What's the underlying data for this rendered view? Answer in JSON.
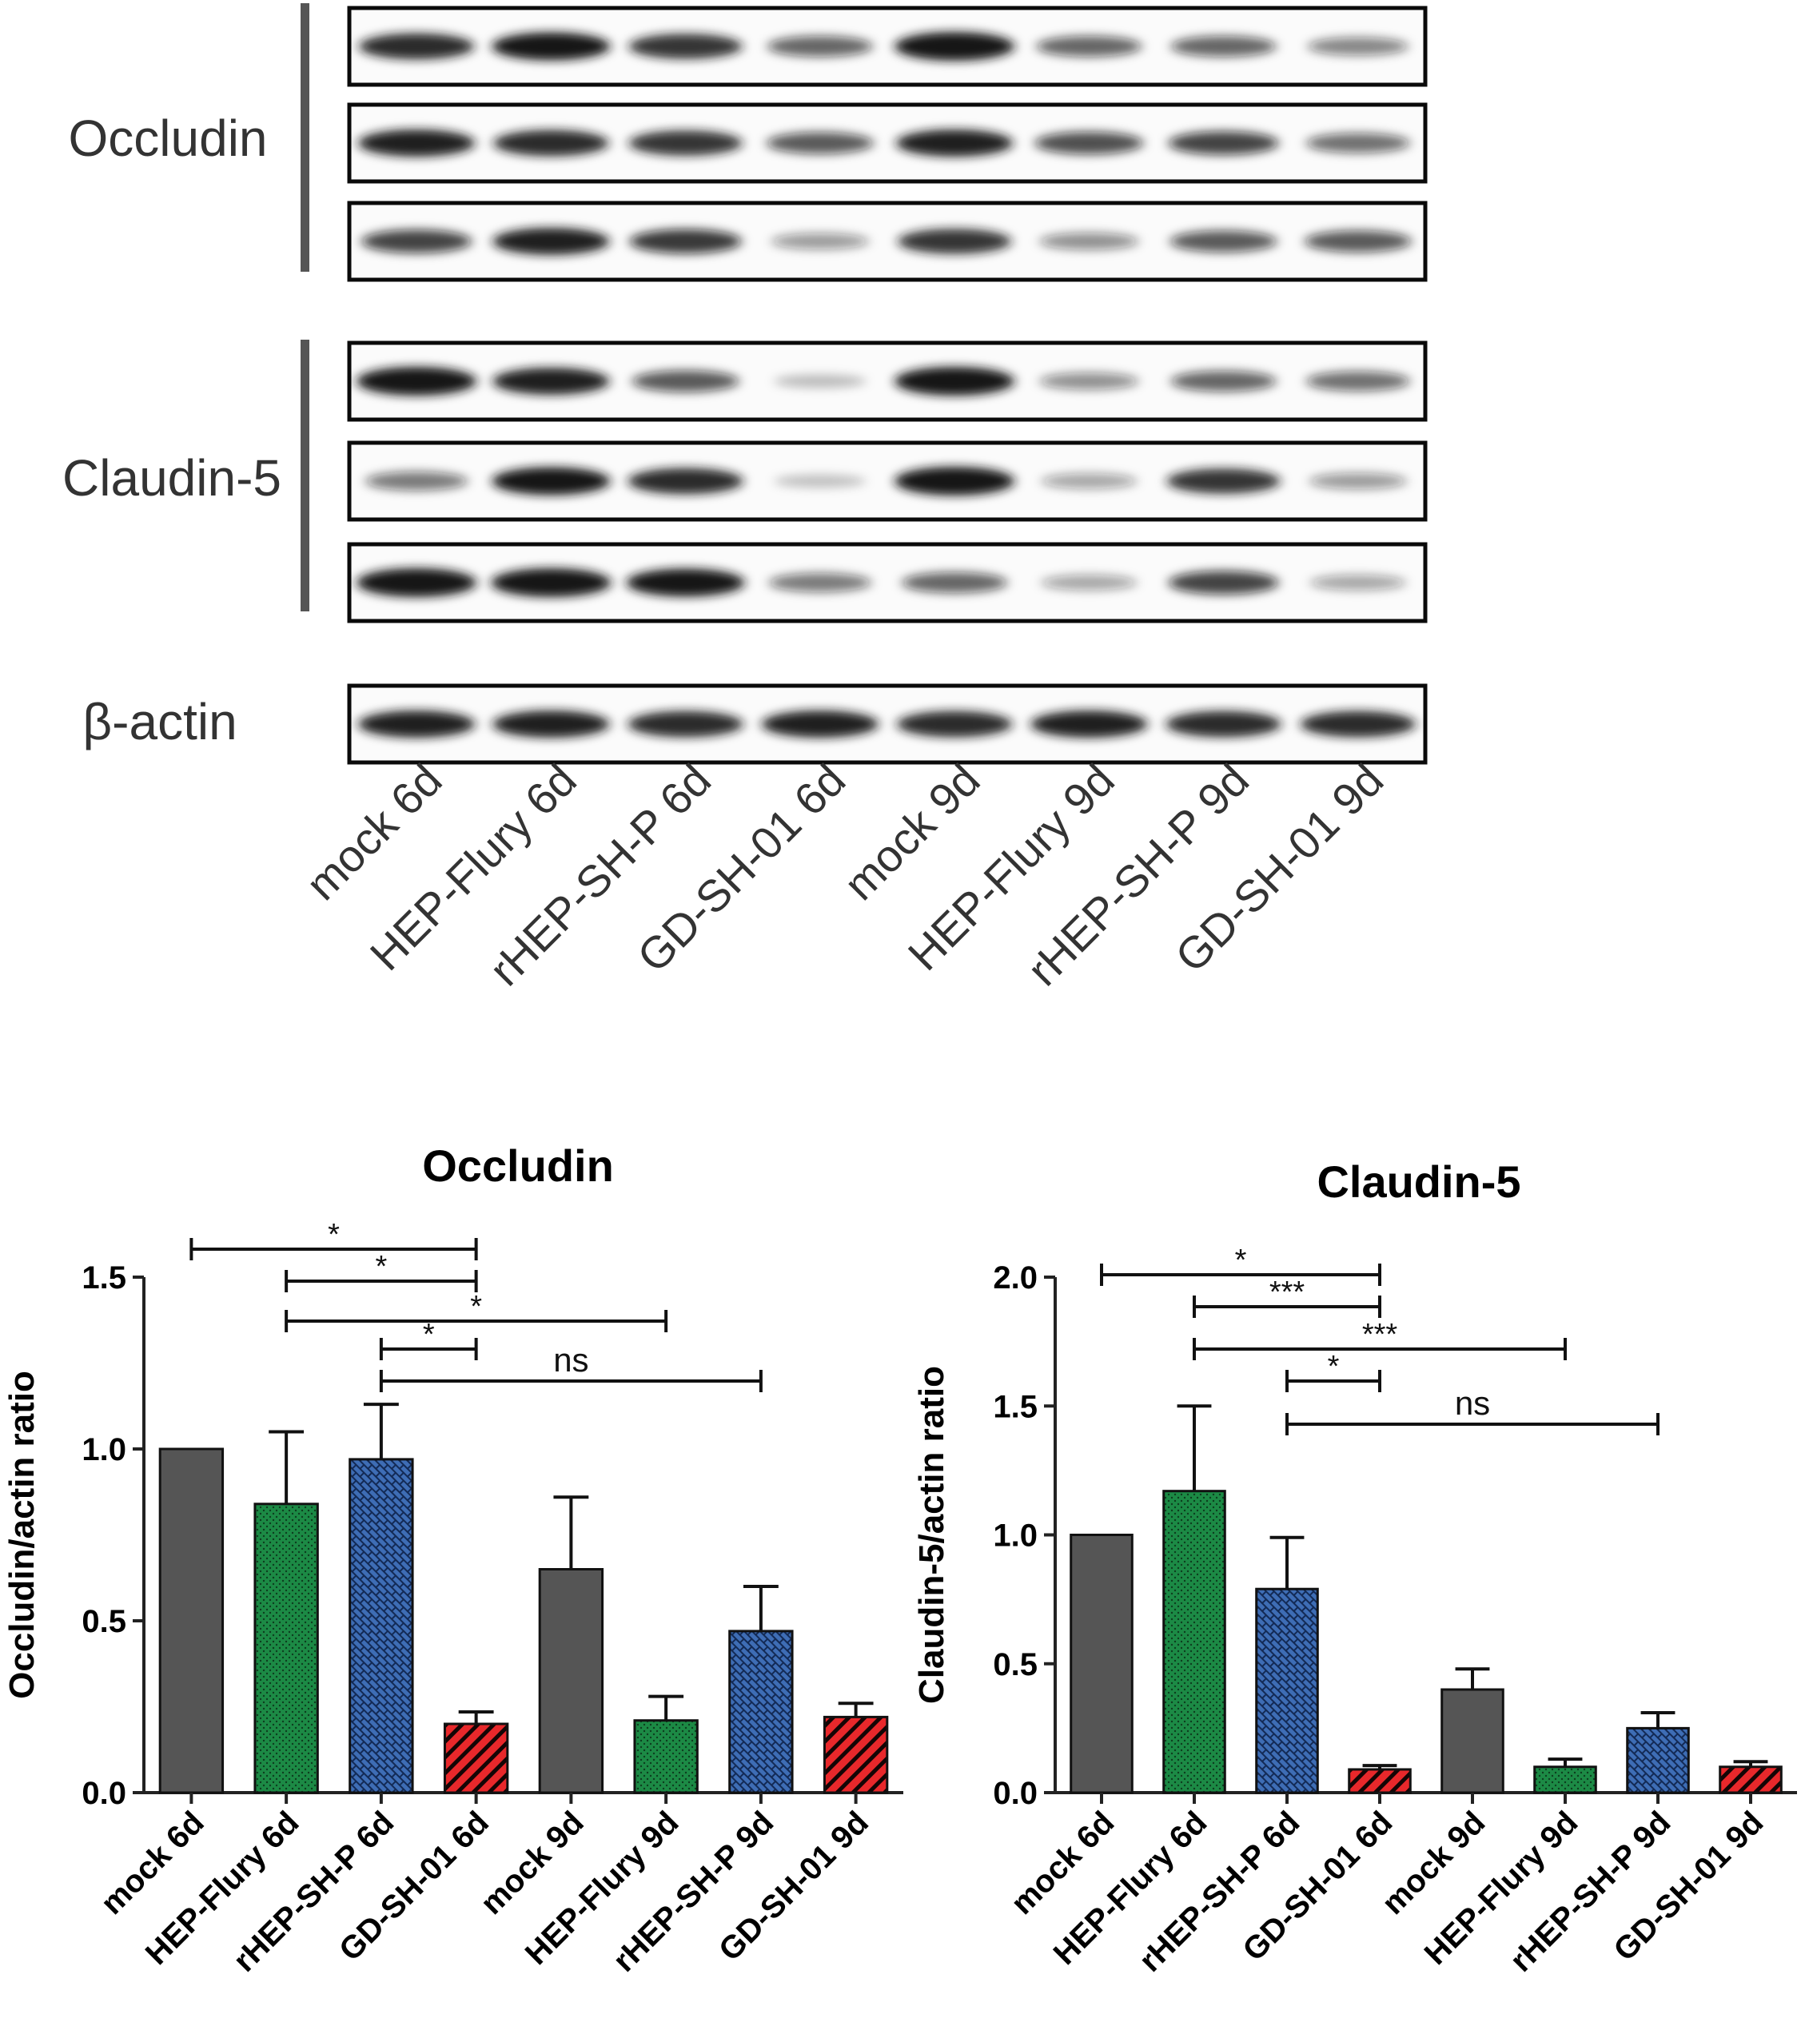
{
  "blot": {
    "groups": [
      {
        "label": "Occludin",
        "strips": [
          [
            0.85,
            0.95,
            0.8,
            0.55,
            1.0,
            0.55,
            0.55,
            0.4
          ],
          [
            0.9,
            0.85,
            0.8,
            0.6,
            0.9,
            0.65,
            0.7,
            0.5
          ],
          [
            0.7,
            0.9,
            0.75,
            0.3,
            0.8,
            0.35,
            0.6,
            0.6
          ]
        ]
      },
      {
        "label": "Claudin-5",
        "strips": [
          [
            1.0,
            0.9,
            0.6,
            0.12,
            1.0,
            0.35,
            0.55,
            0.5
          ],
          [
            0.45,
            0.95,
            0.85,
            0.1,
            1.0,
            0.25,
            0.8,
            0.3
          ],
          [
            1.0,
            1.0,
            0.95,
            0.45,
            0.55,
            0.25,
            0.7,
            0.25
          ]
        ]
      }
    ],
    "control": {
      "label": "β-actin",
      "strip": [
        0.9,
        0.9,
        0.85,
        0.9,
        0.85,
        0.9,
        0.85,
        0.85
      ]
    },
    "lanes": [
      "mock 6d",
      "HEP-Flury 6d",
      "rHEP-SH-P 6d",
      "GD-SH-01 6d",
      "mock 9d",
      "HEP-Flury 9d",
      "rHEP-SH-P 9d",
      "GD-SH-01 9d"
    ]
  },
  "colors": {
    "mock": "#555555",
    "flury": "#1c8a45",
    "shp": "#3e6db5",
    "gd": "#e8282b",
    "axis": "#222222",
    "band": "#141414"
  },
  "chart_data": [
    {
      "type": "bar",
      "title": "Occludin",
      "ylabel": "Occludin/actin ratio",
      "categories": [
        "mock 6d",
        "HEP-Flury 6d",
        "rHEP-SH-P 6d",
        "GD-SH-01 6d",
        "mock 9d",
        "HEP-Flury 9d",
        "rHEP-SH-P 9d",
        "GD-SH-01 9d"
      ],
      "values": [
        1.0,
        0.84,
        0.97,
        0.2,
        0.65,
        0.21,
        0.47,
        0.22
      ],
      "errors": [
        0,
        0.21,
        0.16,
        0.035,
        0.21,
        0.07,
        0.13,
        0.04
      ],
      "patterns": [
        "solid",
        "dots",
        "crosshatch",
        "stripes",
        "solid",
        "dots",
        "crosshatch",
        "stripes"
      ],
      "ylim": [
        0,
        1.5
      ],
      "yticks": [
        "0.0",
        "0.5",
        "1.0",
        "1.5"
      ],
      "comparisons": [
        {
          "from": 0,
          "to": 3,
          "label": "*"
        },
        {
          "from": 1,
          "to": 3,
          "label": "*"
        },
        {
          "from": 1,
          "to": 5,
          "label": "*"
        },
        {
          "from": 2,
          "to": 3,
          "label": "*"
        },
        {
          "from": 2,
          "to": 6,
          "label": "ns"
        }
      ]
    },
    {
      "type": "bar",
      "title": "Claudin-5",
      "ylabel": "Claudin-5/actin ratio",
      "categories": [
        "mock 6d",
        "HEP-Flury 6d",
        "rHEP-SH-P 6d",
        "GD-SH-01 6d",
        "mock 9d",
        "HEP-Flury 9d",
        "rHEP-SH-P 9d",
        "GD-SH-01 9d"
      ],
      "values": [
        1.0,
        1.17,
        0.79,
        0.09,
        0.4,
        0.1,
        0.25,
        0.1
      ],
      "errors": [
        0,
        0.33,
        0.2,
        0.015,
        0.08,
        0.03,
        0.06,
        0.02
      ],
      "patterns": [
        "solid",
        "dots",
        "crosshatch",
        "stripes",
        "solid",
        "dots",
        "crosshatch",
        "stripes"
      ],
      "ylim": [
        0,
        2.0
      ],
      "yticks": [
        "0.0",
        "0.5",
        "1.0",
        "1.5",
        "2.0"
      ],
      "comparisons": [
        {
          "from": 0,
          "to": 3,
          "label": "*"
        },
        {
          "from": 1,
          "to": 3,
          "label": "***"
        },
        {
          "from": 1,
          "to": 5,
          "label": "***"
        },
        {
          "from": 2,
          "to": 3,
          "label": "*"
        },
        {
          "from": 2,
          "to": 6,
          "label": "ns"
        }
      ]
    }
  ]
}
